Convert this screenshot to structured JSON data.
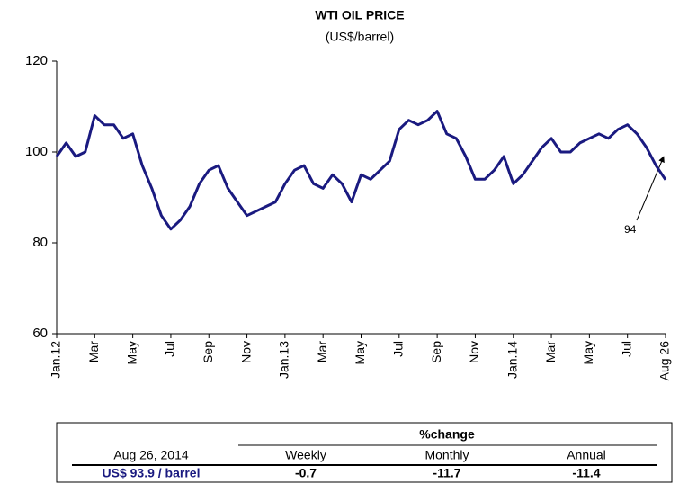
{
  "chart_data": {
    "type": "line",
    "title": "WTI OIL PRICE",
    "subtitle": "(US$/barrel)",
    "categories": [
      "Jan.12",
      null,
      null,
      null,
      "Mar",
      null,
      null,
      null,
      "May",
      null,
      null,
      null,
      "Jul",
      null,
      null,
      null,
      "Sep",
      null,
      null,
      null,
      "Nov",
      null,
      null,
      null,
      "Jan.13",
      null,
      null,
      null,
      "Mar",
      null,
      null,
      null,
      "May",
      null,
      null,
      null,
      "Jul",
      null,
      null,
      null,
      "Sep",
      null,
      null,
      null,
      "Nov",
      null,
      null,
      null,
      "Jan.14",
      null,
      null,
      null,
      "Mar",
      null,
      null,
      null,
      "May",
      null,
      null,
      null,
      "Jul",
      null,
      null,
      null,
      "Aug 26"
    ],
    "series": [
      {
        "name": "WTI",
        "color": "#1a1a80",
        "values": [
          99,
          102,
          99,
          100,
          108,
          106,
          106,
          103,
          104,
          97,
          92,
          86,
          83,
          85,
          88,
          93,
          96,
          97,
          92,
          89,
          86,
          87,
          88,
          89,
          93,
          96,
          97,
          93,
          92,
          95,
          93,
          89,
          95,
          94,
          96,
          98,
          105,
          107,
          106,
          107,
          109,
          104,
          103,
          99,
          94,
          94,
          96,
          99,
          93,
          95,
          98,
          101,
          103,
          100,
          100,
          102,
          103,
          104,
          103,
          105,
          106,
          104,
          101,
          97,
          93.9
        ]
      }
    ],
    "ylim": [
      60,
      120
    ],
    "yticks": [
      60,
      80,
      100,
      120
    ],
    "annotation": "94"
  },
  "table": {
    "header": "%change",
    "rows": [
      [
        "Aug 26, 2014",
        "Weekly",
        "Monthly",
        "Annual"
      ],
      [
        "US$ 93.9 / barrel",
        "-0.7",
        "-11.7",
        "-11.4"
      ]
    ]
  }
}
